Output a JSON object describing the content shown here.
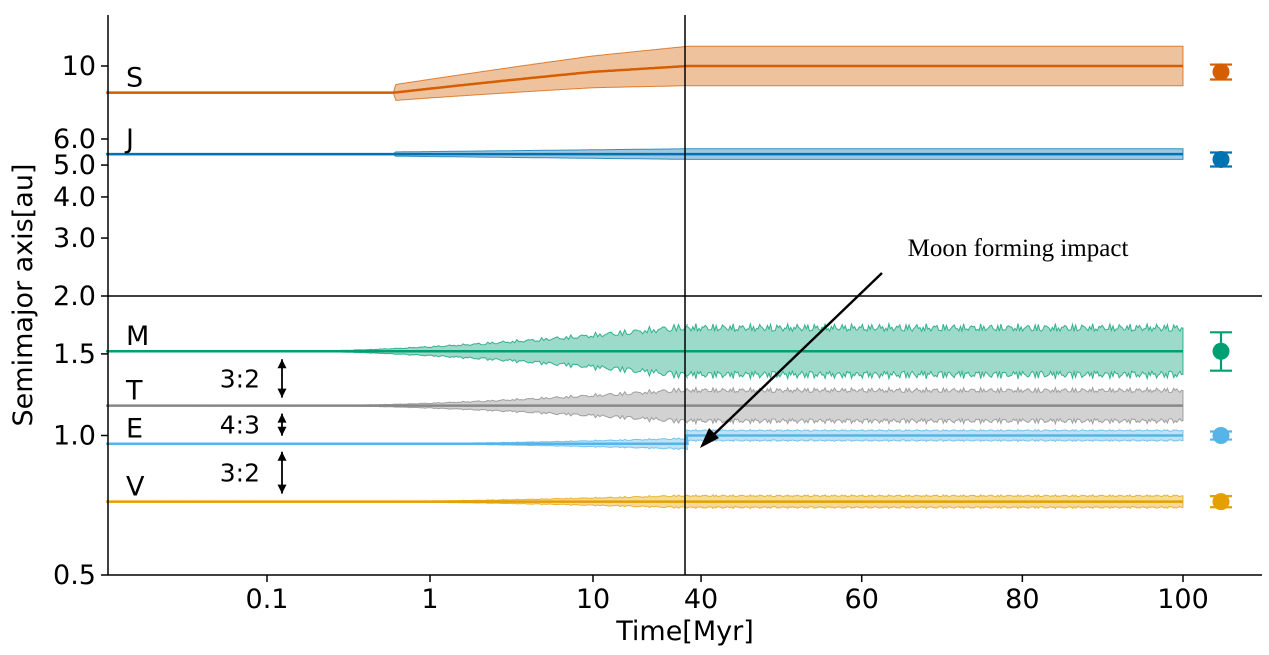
{
  "chart_data": {
    "type": "line",
    "xlabel": "Time[Myr]",
    "ylabel": "Semimajor axis[au]",
    "x_ticks_log": [
      "0.1",
      "1",
      "10"
    ],
    "x_ticks_lin": [
      "40",
      "60",
      "80",
      "100"
    ],
    "y_ticks_top": [
      "10",
      "6.0",
      "5.0",
      "4.0",
      "3.0",
      "2.0"
    ],
    "y_ticks_bottom": [
      "1.5",
      "1.0",
      "0.5"
    ],
    "x_scale": "log up to 38 Myr, then linear to 100 Myr",
    "y_scale": "two stacked log-scaled panels (0.5–2.0 au and 2.0–~13 au)",
    "moon_impact_time": 38,
    "annotation": "Moon forming impact",
    "resonances": [
      {
        "label": "3:2",
        "between": [
          "M",
          "T"
        ]
      },
      {
        "label": "4:3",
        "between": [
          "T",
          "E"
        ]
      },
      {
        "label": "3:2",
        "between": [
          "E",
          "V"
        ]
      }
    ],
    "series": [
      {
        "name": "S",
        "color": "#d55e00",
        "a_initial": 8.3,
        "a_final": 10.0,
        "osc_final": [
          8.5,
          11.2
        ],
        "observed": {
          "value": 9.6,
          "err_low": 9.1,
          "err_high": 10.1
        }
      },
      {
        "name": "J",
        "color": "#0072b2",
        "a_initial": 5.4,
        "a_final": 5.4,
        "osc_final": [
          5.2,
          5.6
        ],
        "observed": {
          "value": 5.2,
          "err_low": 4.95,
          "err_high": 5.46
        }
      },
      {
        "name": "M",
        "color": "#009e73",
        "a_initial": 1.52,
        "a_final": 1.52,
        "osc_final": [
          1.32,
          1.74
        ],
        "observed": {
          "value": 1.52,
          "err_low": 1.38,
          "err_high": 1.67
        }
      },
      {
        "name": "T",
        "color": "#888888",
        "a_initial": 1.16,
        "a_final": 1.16,
        "osc_final": [
          1.06,
          1.27
        ],
        "observed": null
      },
      {
        "name": "E",
        "color": "#56b4e9",
        "a_initial": 0.96,
        "a_final": 1.0,
        "osc_final": [
          0.97,
          1.03
        ],
        "observed": {
          "value": 1.0,
          "err_low": 0.98,
          "err_high": 1.02
        }
      },
      {
        "name": "V",
        "color": "#e69f00",
        "a_initial": 0.72,
        "a_final": 0.72,
        "osc_final": [
          0.7,
          0.75
        ],
        "observed": {
          "value": 0.72,
          "err_low": 0.7,
          "err_high": 0.74
        }
      }
    ]
  }
}
